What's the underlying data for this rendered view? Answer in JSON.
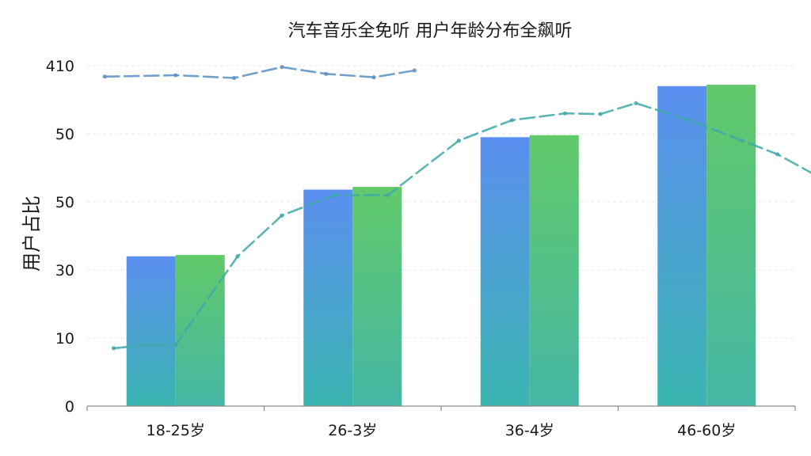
{
  "chart_data": {
    "type": "bar",
    "title": "汽车音乐全免听  用户年龄分布全飙听",
    "ylabel": "用户占比",
    "xlabel": "",
    "categories": [
      "18-25岁",
      "26-3岁",
      "36-4岁",
      "46-60岁"
    ],
    "y_tick_labels": [
      "0",
      "10",
      "30",
      "50",
      "50",
      "410"
    ],
    "ylim": [
      0,
      5
    ],
    "series": [
      {
        "values": [
          2.2,
          3.18,
          3.95,
          4.7
        ]
      },
      {
        "values": [
          2.22,
          3.22,
          3.98,
          4.72
        ]
      }
    ],
    "lines": [
      {
        "style": "dashed",
        "x": [
          -0.35,
          -0.15,
          0.0,
          0.35,
          0.6,
          0.9,
          1.2,
          1.6,
          1.9,
          2.2,
          2.4,
          2.6,
          2.9,
          3.2,
          3.4,
          3.75
        ],
        "y": [
          0.85,
          0.9,
          0.9,
          2.2,
          2.8,
          3.1,
          3.1,
          3.9,
          4.2,
          4.3,
          4.29,
          4.45,
          4.2,
          3.9,
          3.7,
          3.2
        ]
      },
      {
        "style": "dashed",
        "x": [
          -0.4,
          0.0,
          0.33,
          0.6,
          0.85,
          1.12,
          1.35
        ],
        "y": [
          4.84,
          4.86,
          4.82,
          4.98,
          4.88,
          4.83,
          4.93
        ]
      }
    ],
    "colors": {
      "bar_left_top": "#5b8ff0",
      "bar_left_bottom": "#3ab5b0",
      "bar_right_top": "#62c96a",
      "bar_right_bottom": "#45b7a5",
      "line_main": "#3fa8a8",
      "line_top": "#5b8fc2",
      "axis": "#8a8a8a",
      "grid": "#e6e6e6"
    },
    "grid": true,
    "legend": "none"
  }
}
